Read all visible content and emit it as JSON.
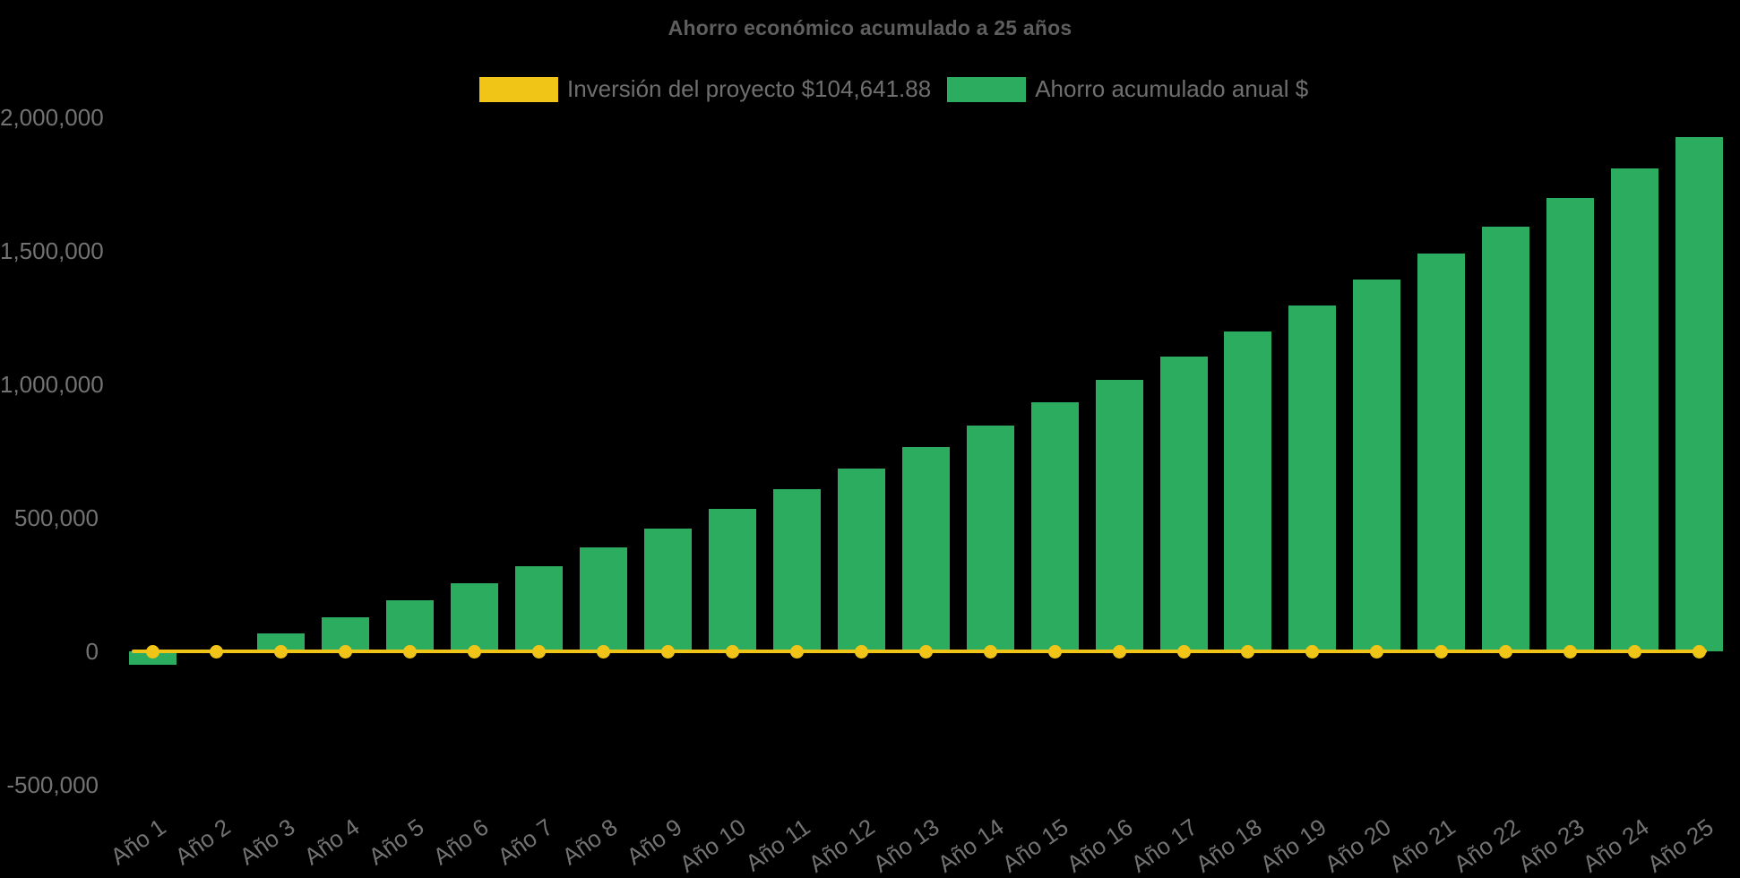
{
  "chart_data": {
    "type": "bar",
    "title": "Ahorro económico acumulado a 25 años",
    "background_color": "#000000",
    "legend_position": "top",
    "grid": false,
    "categories": [
      "Año 1",
      "Año 2",
      "Año 3",
      "Año 4",
      "Año 5",
      "Año 6",
      "Año 7",
      "Año 8",
      "Año 9",
      "Año 10",
      "Año 11",
      "Año 12",
      "Año 13",
      "Año 14",
      "Año 15",
      "Año 16",
      "Año 17",
      "Año 18",
      "Año 19",
      "Año 20",
      "Año 21",
      "Año 22",
      "Año 23",
      "Año 24",
      "Año 25"
    ],
    "series": [
      {
        "name": "Inversión del proyecto $104,641.88",
        "type": "line",
        "color": "#f0c518",
        "investment_value": 104641.88,
        "plotted_level": 0,
        "marker": "circle"
      },
      {
        "name": "Ahorro acumulado anual $",
        "type": "bar",
        "color": "#2bac5f",
        "values": [
          -49000,
          7000,
          67000,
          129000,
          190000,
          254000,
          319000,
          389000,
          459000,
          533000,
          607000,
          686000,
          764000,
          847000,
          932000,
          1018000,
          1104000,
          1197000,
          1295000,
          1391000,
          1491000,
          1592000,
          1698000,
          1810000,
          1926000
        ]
      }
    ],
    "y_axis": {
      "min": -500000,
      "max": 2000000,
      "tick_interval": 500000,
      "ticks": [
        {
          "value": 2000000,
          "label": "2,000,000"
        },
        {
          "value": 1500000,
          "label": "1,500,000"
        },
        {
          "value": 1000000,
          "label": "1,000,000"
        },
        {
          "value": 500000,
          "label": "500,000"
        },
        {
          "value": 0,
          "label": "0"
        },
        {
          "value": -500000,
          "label": "-500,000"
        }
      ]
    },
    "x_axis": {
      "label_rotation_deg": -35
    }
  }
}
